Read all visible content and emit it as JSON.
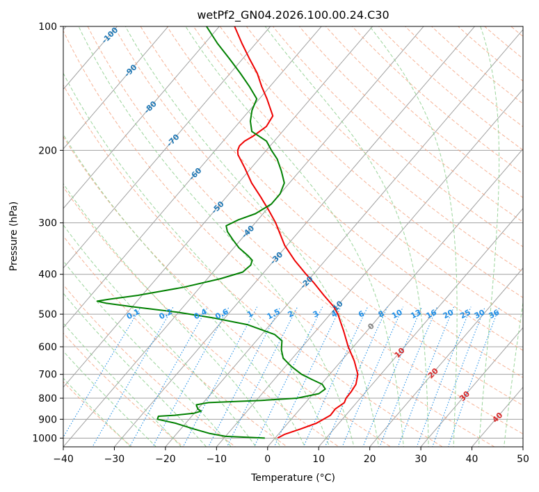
{
  "chart_data": {
    "type": "line",
    "title": "wetPf2_GN04.2026.100.00.24.C30",
    "xlabel": "Temperature (°C)",
    "ylabel": "Pressure (hPa)",
    "xlim": [
      -40,
      50
    ],
    "ylim": [
      1050,
      100
    ],
    "y_scale": "log",
    "x_ticks": [
      -40,
      -30,
      -20,
      -10,
      0,
      10,
      20,
      30,
      40,
      50
    ],
    "y_ticks": [
      100,
      200,
      300,
      400,
      500,
      600,
      700,
      800,
      900,
      1000
    ],
    "skew": 30,
    "colors": {
      "temperature": "#ee0000",
      "dewpoint": "#008000",
      "isotherm": "#a0a0a0",
      "dry_adiabat": "#f4a582",
      "moist_adiabat": "#8fcf8f",
      "mixing_ratio": "#1f8ee6",
      "wet_bulb_zero": "#d6bfa0",
      "mixing_label": "#1f8ee6",
      "isotherm_label_blue": "#1f77b4",
      "isotherm_label_red": "#d62728"
    },
    "series": [
      {
        "name": "Temperature",
        "points": [
          {
            "p": 1000,
            "t": 0.5
          },
          {
            "p": 980,
            "t": 1.2
          },
          {
            "p": 950,
            "t": 3.5
          },
          {
            "p": 920,
            "t": 5.6
          },
          {
            "p": 880,
            "t": 7.0
          },
          {
            "p": 850,
            "t": 6.9
          },
          {
            "p": 820,
            "t": 7.6
          },
          {
            "p": 800,
            "t": 7.2
          },
          {
            "p": 770,
            "t": 7.1
          },
          {
            "p": 740,
            "t": 6.8
          },
          {
            "p": 700,
            "t": 5.5
          },
          {
            "p": 650,
            "t": 2.6
          },
          {
            "p": 600,
            "t": -1.0
          },
          {
            "p": 550,
            "t": -4.5
          },
          {
            "p": 500,
            "t": -8.5
          },
          {
            "p": 480,
            "t": -10.5
          },
          {
            "p": 450,
            "t": -14.4
          },
          {
            "p": 420,
            "t": -18.4
          },
          {
            "p": 400,
            "t": -21.4
          },
          {
            "p": 370,
            "t": -26.0
          },
          {
            "p": 340,
            "t": -30.5
          },
          {
            "p": 300,
            "t": -36.0
          },
          {
            "p": 280,
            "t": -39.4
          },
          {
            "p": 260,
            "t": -43.2
          },
          {
            "p": 240,
            "t": -47.4
          },
          {
            "p": 220,
            "t": -51.4
          },
          {
            "p": 205,
            "t": -54.8
          },
          {
            "p": 200,
            "t": -55.6
          },
          {
            "p": 195,
            "t": -56.0
          },
          {
            "p": 190,
            "t": -55.8
          },
          {
            "p": 185,
            "t": -55.0
          },
          {
            "p": 175,
            "t": -54.0
          },
          {
            "p": 165,
            "t": -54.5
          },
          {
            "p": 150,
            "t": -58.5
          },
          {
            "p": 140,
            "t": -61.6
          },
          {
            "p": 130,
            "t": -64.7
          },
          {
            "p": 120,
            "t": -68.6
          },
          {
            "p": 110,
            "t": -72.7
          },
          {
            "p": 100,
            "t": -77.0
          }
        ]
      },
      {
        "name": "Dewpoint",
        "points": [
          {
            "p": 1000,
            "t": -2.0
          },
          {
            "p": 990,
            "t": -10.0
          },
          {
            "p": 975,
            "t": -13.5
          },
          {
            "p": 950,
            "t": -17.5
          },
          {
            "p": 920,
            "t": -22.0
          },
          {
            "p": 900,
            "t": -26.2
          },
          {
            "p": 885,
            "t": -26.5
          },
          {
            "p": 880,
            "t": -23.5
          },
          {
            "p": 870,
            "t": -20.0
          },
          {
            "p": 860,
            "t": -19.0
          },
          {
            "p": 850,
            "t": -20.0
          },
          {
            "p": 830,
            "t": -21.0
          },
          {
            "p": 820,
            "t": -19.0
          },
          {
            "p": 810,
            "t": -9.0
          },
          {
            "p": 800,
            "t": -2.4
          },
          {
            "p": 780,
            "t": 1.1
          },
          {
            "p": 760,
            "t": 1.6
          },
          {
            "p": 740,
            "t": 0.2
          },
          {
            "p": 720,
            "t": -2.7
          },
          {
            "p": 700,
            "t": -5.5
          },
          {
            "p": 670,
            "t": -8.8
          },
          {
            "p": 640,
            "t": -11.8
          },
          {
            "p": 610,
            "t": -13.6
          },
          {
            "p": 580,
            "t": -15.0
          },
          {
            "p": 560,
            "t": -17.5
          },
          {
            "p": 530,
            "t": -24.5
          },
          {
            "p": 510,
            "t": -32.5
          },
          {
            "p": 495,
            "t": -40.0
          },
          {
            "p": 480,
            "t": -49.7
          },
          {
            "p": 470,
            "t": -55.8
          },
          {
            "p": 465,
            "t": -57.8
          },
          {
            "p": 460,
            "t": -55.8
          },
          {
            "p": 450,
            "t": -50.8
          },
          {
            "p": 430,
            "t": -43.2
          },
          {
            "p": 410,
            "t": -37.4
          },
          {
            "p": 395,
            "t": -34.2
          },
          {
            "p": 380,
            "t": -33.8
          },
          {
            "p": 370,
            "t": -34.3
          },
          {
            "p": 360,
            "t": -36.0
          },
          {
            "p": 345,
            "t": -39.0
          },
          {
            "p": 330,
            "t": -41.5
          },
          {
            "p": 315,
            "t": -44.0
          },
          {
            "p": 305,
            "t": -45.2
          },
          {
            "p": 295,
            "t": -43.8
          },
          {
            "p": 285,
            "t": -41.5
          },
          {
            "p": 270,
            "t": -40.0
          },
          {
            "p": 255,
            "t": -40.0
          },
          {
            "p": 240,
            "t": -41.0
          },
          {
            "p": 225,
            "t": -43.5
          },
          {
            "p": 210,
            "t": -46.4
          },
          {
            "p": 200,
            "t": -49.0
          },
          {
            "p": 190,
            "t": -51.5
          },
          {
            "p": 180,
            "t": -56.0
          },
          {
            "p": 170,
            "t": -58.0
          },
          {
            "p": 160,
            "t": -59.5
          },
          {
            "p": 150,
            "t": -60.5
          },
          {
            "p": 140,
            "t": -64.0
          },
          {
            "p": 130,
            "t": -68.0
          },
          {
            "p": 120,
            "t": -72.5
          },
          {
            "p": 110,
            "t": -77.5
          },
          {
            "p": 100,
            "t": -82.5
          }
        ]
      }
    ],
    "isotherm_labels_blue": [
      {
        "text": "-100",
        "t": -100,
        "p": 105
      },
      {
        "text": "-90",
        "t": -90,
        "p": 128
      },
      {
        "text": "-80",
        "t": -80,
        "p": 157
      },
      {
        "text": "-70",
        "t": -70,
        "p": 189
      },
      {
        "text": "-60",
        "t": -60,
        "p": 228
      },
      {
        "text": "-50",
        "t": -50,
        "p": 275
      },
      {
        "text": "-40",
        "t": -40,
        "p": 315
      },
      {
        "text": "-30",
        "t": -30,
        "p": 365
      },
      {
        "text": "-20",
        "t": -20,
        "p": 418
      },
      {
        "text": "-10",
        "t": -10,
        "p": 480
      }
    ],
    "isotherm_labels_red": [
      {
        "text": "0",
        "t": 0,
        "p": 535
      },
      {
        "text": "10",
        "t": 10,
        "p": 620
      },
      {
        "text": "20",
        "t": 20,
        "p": 695
      },
      {
        "text": "30",
        "t": 30,
        "p": 790
      },
      {
        "text": "40",
        "t": 40,
        "p": 890
      }
    ],
    "mixing_ratio_labels": [
      "0.1",
      "0.2",
      "0.4",
      "0.6",
      "1",
      "1.5",
      "2",
      "3",
      "4",
      "6",
      "8",
      "10",
      "13",
      "16",
      "20",
      "25",
      "30",
      "36"
    ],
    "mixing_ratio_values": [
      0.1,
      0.2,
      0.4,
      0.6,
      1,
      1.5,
      2,
      3,
      4,
      6,
      8,
      10,
      13,
      16,
      20,
      25,
      30,
      36
    ]
  }
}
